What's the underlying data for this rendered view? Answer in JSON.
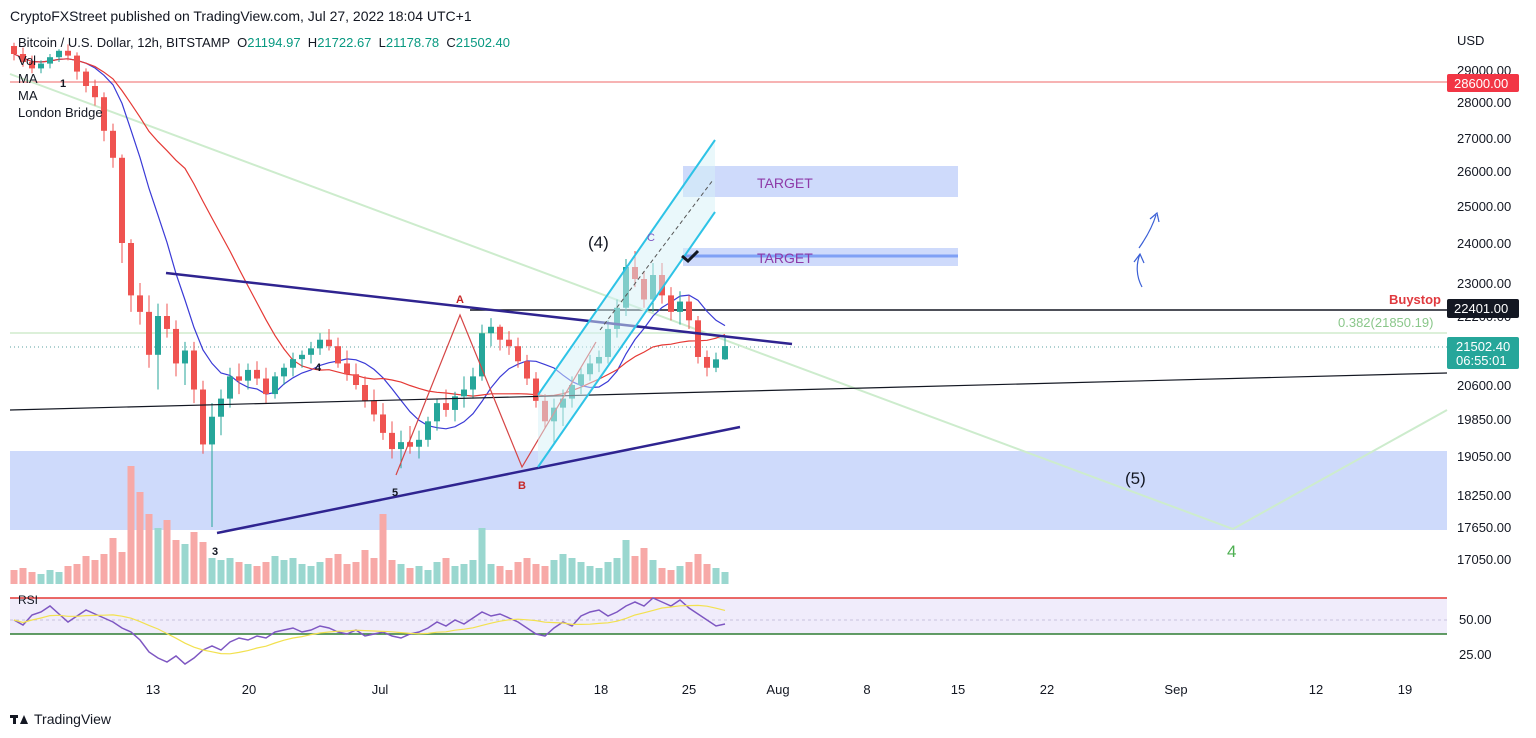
{
  "header": {
    "publisher": "CryptoFXStreet published on TradingView.com, Jul 27, 2022 18:04 UTC+1"
  },
  "legend": {
    "symbol": "Bitcoin / U.S. Dollar, 12h, BITSTAMP",
    "open_label": "O",
    "open": "21194.97",
    "high_label": "H",
    "high": "21722.67",
    "low_label": "L",
    "low": "21178.78",
    "close_label": "C",
    "close": "21502.40",
    "indicators": [
      "Vol",
      "MA",
      "MA",
      "London Bridge"
    ]
  },
  "footer": {
    "brand": "TradingView"
  },
  "colors": {
    "up": "#26a69a",
    "down": "#ef5350",
    "ma_fast": "#3a3ad6",
    "ma_slow": "#e53935",
    "zone": "#c9d6fb",
    "trendline": "#2f2490",
    "channel": "#2ec3e6",
    "rsi": "#7e57c2",
    "rsi_ma": "#f2e14f"
  },
  "chart_data": {
    "type": "candlestick",
    "currency": "USD",
    "y_ticks": [
      29000,
      28000,
      27000,
      26000,
      25000,
      24000,
      23000,
      22200,
      20600,
      19850,
      19050,
      18250,
      17650,
      17050
    ],
    "x_ticks": [
      "13",
      "20",
      "Jul",
      "11",
      "18",
      "25",
      "Aug",
      "8",
      "15",
      "22",
      "Sep",
      "12",
      "19"
    ],
    "price_labels": [
      {
        "value": "28600.00",
        "style": "red"
      },
      {
        "value": "22401.00",
        "style": "black"
      },
      {
        "value": "21502.40",
        "sub": "06:55:01",
        "style": "teal"
      }
    ],
    "annotations": {
      "targets": [
        "TARGET",
        "TARGET"
      ],
      "buystop": "Buystop",
      "fib": "0.382(21850.19)",
      "waves": [
        "(4)",
        "(5)",
        "4",
        "1",
        "3",
        "4",
        "5",
        "A",
        "B",
        "C"
      ]
    },
    "rsi": {
      "label": "RSI",
      "ticks": [
        "50.00",
        "25.00"
      ]
    },
    "candles": [
      [
        29750,
        29850,
        29300,
        29500
      ],
      [
        29500,
        29700,
        29100,
        29250
      ],
      [
        29250,
        29450,
        28900,
        29050
      ],
      [
        29050,
        29300,
        28900,
        29200
      ],
      [
        29200,
        29500,
        29050,
        29400
      ],
      [
        29400,
        29650,
        29250,
        29600
      ],
      [
        29600,
        29800,
        29300,
        29450
      ],
      [
        29450,
        29550,
        28700,
        28950
      ],
      [
        28950,
        29050,
        28300,
        28500
      ],
      [
        28500,
        28700,
        27900,
        28150
      ],
      [
        28150,
        28300,
        26900,
        27200
      ],
      [
        27200,
        27400,
        26100,
        26400
      ],
      [
        26400,
        26500,
        23500,
        24000
      ],
      [
        24000,
        24100,
        22300,
        22700
      ],
      [
        22700,
        23000,
        22000,
        22300
      ],
      [
        22300,
        22700,
        21000,
        21300
      ],
      [
        21300,
        22500,
        20500,
        22200
      ],
      [
        22200,
        22500,
        21700,
        21900
      ],
      [
        21900,
        22100,
        20800,
        21100
      ],
      [
        21100,
        21600,
        20600,
        21400
      ],
      [
        21400,
        21600,
        20200,
        20500
      ],
      [
        20500,
        20700,
        19100,
        19300
      ],
      [
        19300,
        20200,
        17650,
        19900
      ],
      [
        19900,
        20500,
        19500,
        20300
      ],
      [
        20300,
        21000,
        20100,
        20800
      ],
      [
        20800,
        21100,
        20400,
        20700
      ],
      [
        20700,
        21100,
        20500,
        20950
      ],
      [
        20950,
        21150,
        20600,
        20750
      ],
      [
        20750,
        21000,
        20200,
        20400
      ],
      [
        20400,
        20900,
        20300,
        20800
      ],
      [
        20800,
        21100,
        20600,
        21000
      ],
      [
        21000,
        21350,
        20800,
        21200
      ],
      [
        21200,
        21400,
        21000,
        21300
      ],
      [
        21300,
        21600,
        21100,
        21450
      ],
      [
        21450,
        21800,
        21300,
        21650
      ],
      [
        21650,
        21900,
        21400,
        21500
      ],
      [
        21500,
        21700,
        21000,
        21100
      ],
      [
        21100,
        21400,
        20700,
        20850
      ],
      [
        20850,
        21100,
        20500,
        20600
      ],
      [
        20600,
        20800,
        20100,
        20250
      ],
      [
        20250,
        20500,
        19800,
        19950
      ],
      [
        19950,
        20200,
        19400,
        19550
      ],
      [
        19550,
        19800,
        19000,
        19200
      ],
      [
        19200,
        19600,
        18800,
        19350
      ],
      [
        19350,
        19700,
        19100,
        19250
      ],
      [
        19250,
        19600,
        19000,
        19400
      ],
      [
        19400,
        19900,
        19250,
        19800
      ],
      [
        19800,
        20300,
        19600,
        20200
      ],
      [
        20200,
        20500,
        19900,
        20050
      ],
      [
        20050,
        20450,
        19800,
        20350
      ],
      [
        20350,
        20800,
        20100,
        20500
      ],
      [
        20500,
        21000,
        20300,
        20800
      ],
      [
        20800,
        22000,
        20700,
        21800
      ],
      [
        21800,
        22150,
        21500,
        21950
      ],
      [
        21950,
        22000,
        21400,
        21650
      ],
      [
        21650,
        21850,
        21300,
        21500
      ],
      [
        21500,
        21700,
        21000,
        21150
      ],
      [
        21150,
        21300,
        20600,
        20750
      ],
      [
        20750,
        20900,
        20100,
        20250
      ],
      [
        20250,
        20400,
        19650,
        19800
      ],
      [
        19800,
        20300,
        19300,
        20100
      ],
      [
        20100,
        20500,
        19700,
        20300
      ],
      [
        20300,
        20800,
        20100,
        20600
      ],
      [
        20600,
        21000,
        20400,
        20850
      ],
      [
        20850,
        21300,
        20700,
        21100
      ],
      [
        21100,
        21400,
        20900,
        21250
      ],
      [
        21250,
        22100,
        21100,
        21900
      ],
      [
        21900,
        22600,
        21700,
        22400
      ],
      [
        22400,
        23600,
        22200,
        23400
      ],
      [
        23400,
        23800,
        22900,
        23100
      ],
      [
        23100,
        23300,
        22400,
        22600
      ],
      [
        22600,
        23500,
        22300,
        23200
      ],
      [
        23200,
        23500,
        22500,
        22700
      ],
      [
        22700,
        22900,
        22100,
        22300
      ],
      [
        22300,
        22800,
        22000,
        22550
      ],
      [
        22550,
        22700,
        21900,
        22100
      ],
      [
        22100,
        22200,
        21100,
        21250
      ],
      [
        21250,
        21400,
        20800,
        21000
      ],
      [
        21000,
        21350,
        20900,
        21194.97
      ],
      [
        21194.97,
        21722.67,
        21178.78,
        21502.4
      ]
    ]
  }
}
